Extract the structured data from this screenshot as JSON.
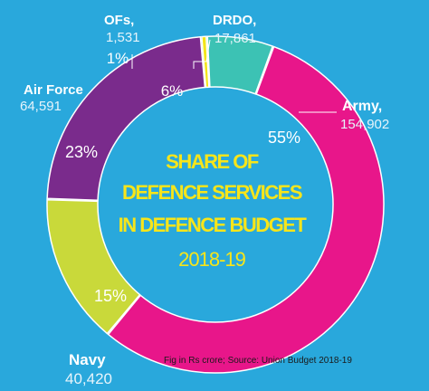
{
  "colors": {
    "background": "#29a8dc",
    "army": "#e8168a",
    "navy": "#c9d93a",
    "air_force": "#7a2b8c",
    "ofs": "#f3e51b",
    "drdo": "#3cc2b4",
    "center_text": "#f7e51a",
    "label_name": "#ffffff",
    "label_value": "#e6f4fb",
    "leader_line": "#ffffff"
  },
  "chart_data": {
    "type": "pie",
    "style": "donut",
    "title_lines": [
      "SHARE OF",
      "DEFENCE SERVICES",
      "IN DEFENCE BUDGET"
    ],
    "subtitle": "2018-19",
    "source_note": "Fig in Rs crore; Source: Union Budget 2018-19",
    "slices": [
      {
        "name": "Army",
        "name_text": "Army,",
        "value": 154902,
        "value_text": "154,902",
        "percent_text": "55%",
        "color_key": "army",
        "label_side": "right"
      },
      {
        "name": "Navy",
        "name_text": "Navy",
        "value": 40420,
        "value_text": "40,420",
        "percent_text": "15%",
        "color_key": "navy",
        "label_side": "bottom-left"
      },
      {
        "name": "Air Force",
        "name_text": "Air Force",
        "value": 64591,
        "value_text": "64,591",
        "percent_text": "23%",
        "color_key": "air_force",
        "label_side": "left"
      },
      {
        "name": "OFs",
        "name_text": "OFs,",
        "value": 1531,
        "value_text": "1,531",
        "percent_text": "1%",
        "color_key": "ofs",
        "label_side": "top-left"
      },
      {
        "name": "DRDO",
        "name_text": "DRDO,",
        "value": 17861,
        "value_text": "17,861",
        "percent_text": "6%",
        "color_key": "drdo",
        "label_side": "top"
      }
    ]
  }
}
